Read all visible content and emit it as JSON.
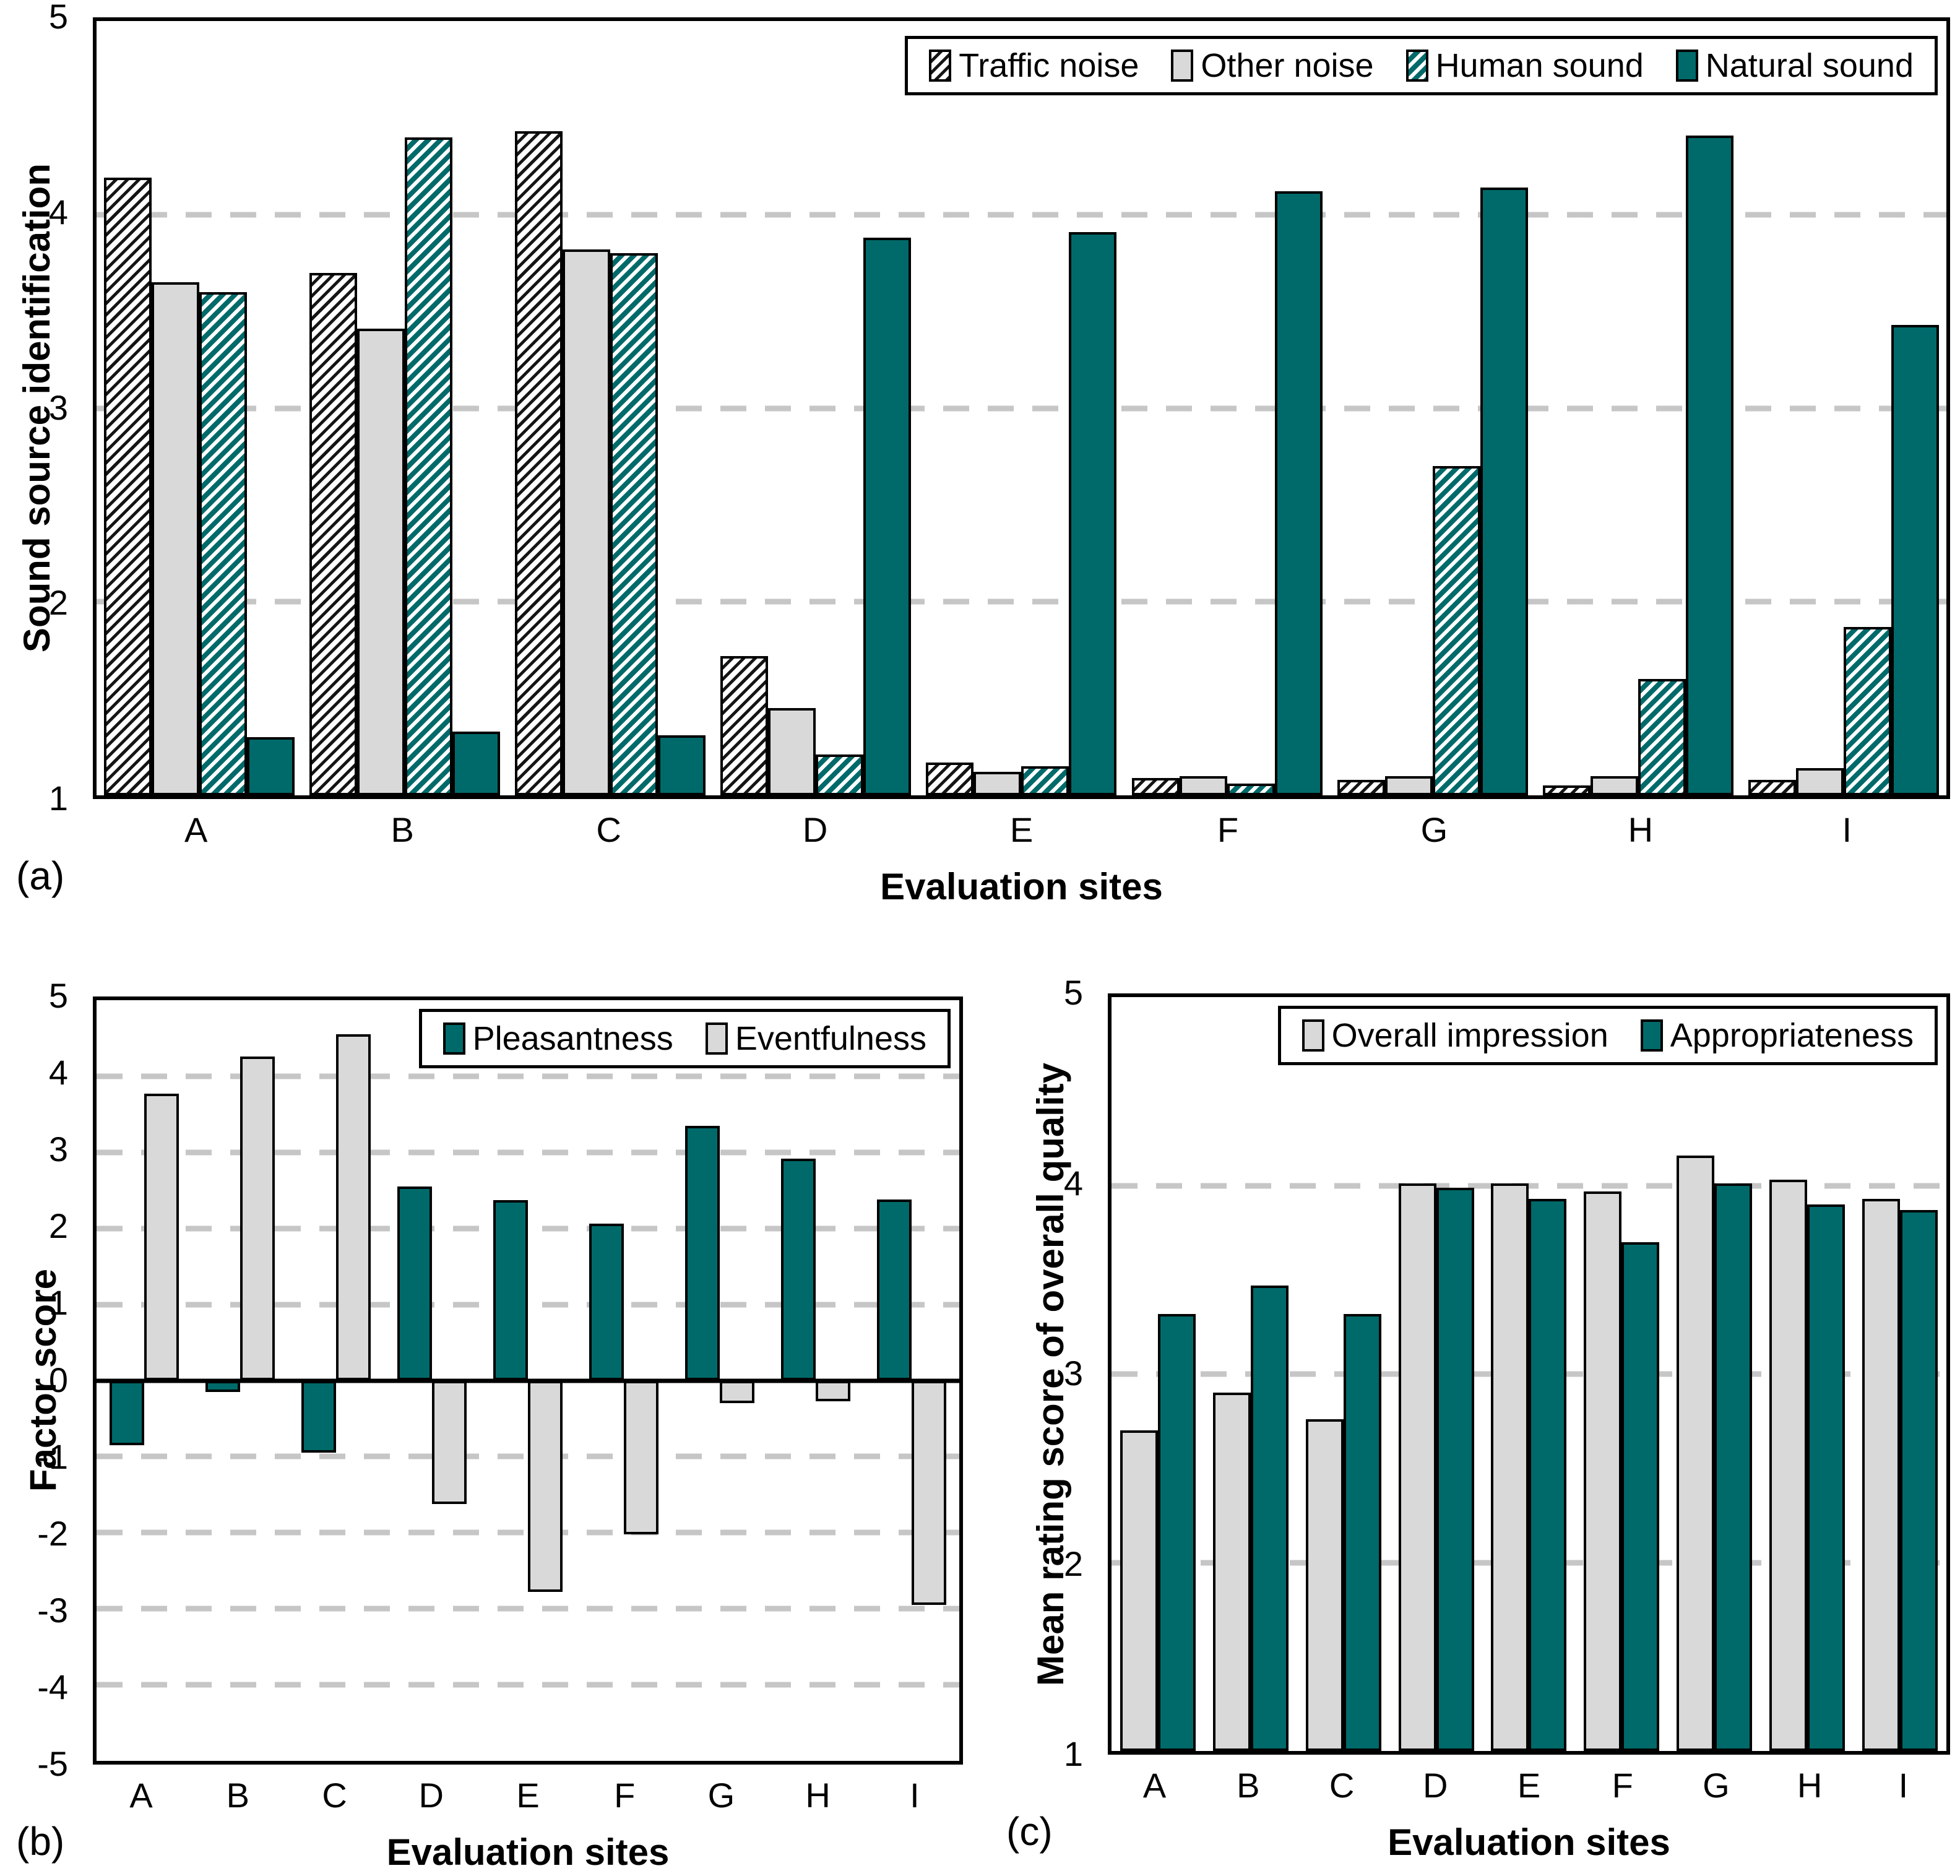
{
  "figure": {
    "description": "Three-panel bar chart figure of soundscape evaluation across nine sites",
    "panel_labels": [
      "(a)",
      "(b)",
      "(c)"
    ],
    "colors": {
      "teal": "#006a6a",
      "light_gray_bar": "#d9d9d9",
      "gridline_gray": "#c6c6c6",
      "axis_black": "#000000",
      "background": "#ffffff"
    }
  },
  "chart_data": [
    {
      "id": "a",
      "type": "bar",
      "panel_label": "(a)",
      "title": "",
      "ylabel": "Sound source identification",
      "xlabel": "Evaluation sites",
      "ylim": [
        1,
        5
      ],
      "yticks": [
        5,
        4,
        3,
        2,
        1
      ],
      "gridlines": [
        4,
        3,
        2
      ],
      "grid_style": "dashed",
      "legend_position": "top-right",
      "categories": [
        "A",
        "B",
        "C",
        "D",
        "E",
        "F",
        "G",
        "H",
        "I"
      ],
      "series": [
        {
          "name": "Traffic noise",
          "pattern": "hatch-black",
          "values": [
            4.19,
            3.7,
            4.43,
            1.72,
            1.17,
            1.09,
            1.08,
            1.05,
            1.08
          ]
        },
        {
          "name": "Other noise",
          "pattern": "solid-gray",
          "values": [
            3.65,
            3.41,
            3.82,
            1.45,
            1.12,
            1.1,
            1.1,
            1.1,
            1.14
          ]
        },
        {
          "name": "Human sound",
          "pattern": "hatch-teal",
          "values": [
            3.6,
            4.4,
            3.8,
            1.21,
            1.15,
            1.06,
            2.7,
            1.6,
            1.87
          ]
        },
        {
          "name": "Natural sound",
          "pattern": "solid-teal",
          "values": [
            1.3,
            1.33,
            1.31,
            3.88,
            3.91,
            4.12,
            4.14,
            4.41,
            3.43
          ]
        }
      ]
    },
    {
      "id": "b",
      "type": "bar",
      "panel_label": "(b)",
      "title": "",
      "ylabel": "Factor score",
      "xlabel": "Evaluation sites",
      "ylim": [
        -5,
        5
      ],
      "yticks": [
        5,
        4,
        3,
        2,
        1,
        0,
        -1,
        -2,
        -3,
        -4,
        -5
      ],
      "gridlines": [
        4,
        3,
        2,
        1,
        -1,
        -2,
        -3,
        -4
      ],
      "grid_style": "dashed",
      "legend_position": "top-right",
      "categories": [
        "A",
        "B",
        "C",
        "D",
        "E",
        "F",
        "G",
        "H",
        "I"
      ],
      "series": [
        {
          "name": "Pleasantness",
          "pattern": "solid-teal",
          "values": [
            -0.85,
            -0.15,
            -0.95,
            2.55,
            2.37,
            2.06,
            3.35,
            2.92,
            2.38
          ]
        },
        {
          "name": "Eventfulness",
          "pattern": "solid-gray",
          "values": [
            3.77,
            4.26,
            4.55,
            -1.62,
            -2.78,
            -2.02,
            -0.3,
            -0.27,
            -2.95
          ]
        }
      ]
    },
    {
      "id": "c",
      "type": "bar",
      "panel_label": "(c)",
      "title": "",
      "ylabel": "Mean rating score of overall quality",
      "xlabel": "Evaluation sites",
      "ylim": [
        1,
        5
      ],
      "yticks": [
        5,
        4,
        3,
        2,
        1
      ],
      "gridlines": [
        4,
        3,
        2
      ],
      "grid_style": "dashed",
      "legend_position": "top-right",
      "categories": [
        "A",
        "B",
        "C",
        "D",
        "E",
        "F",
        "G",
        "H",
        "I"
      ],
      "series": [
        {
          "name": "Overall impression",
          "pattern": "solid-gray",
          "values": [
            2.7,
            2.9,
            2.76,
            4.01,
            4.01,
            3.97,
            4.16,
            4.03,
            3.93
          ]
        },
        {
          "name": "Appropriateness",
          "pattern": "solid-teal",
          "values": [
            3.32,
            3.47,
            3.32,
            3.99,
            3.93,
            3.7,
            4.01,
            3.9,
            3.87
          ]
        }
      ]
    }
  ]
}
